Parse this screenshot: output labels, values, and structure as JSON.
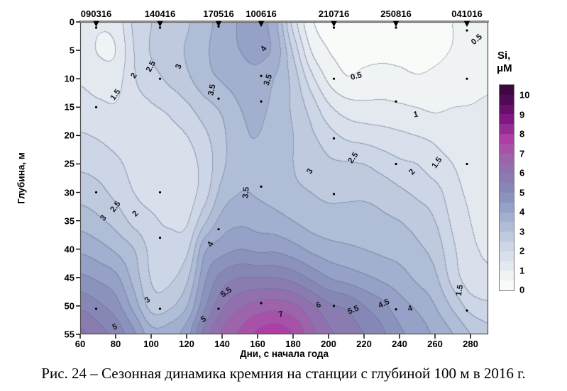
{
  "figure": {
    "caption": "Рис. 24 – Сезонная динамика кремния на станции с глубиной 100 м в 2016 г."
  },
  "chart_data": {
    "type": "heatmap",
    "subtype": "filled-contour-section",
    "title": "",
    "xlabel": "Дни, с начала года",
    "ylabel": "Глубина, м",
    "xlim": [
      60,
      290
    ],
    "ylim": [
      0,
      55
    ],
    "x_ticks": [
      60,
      80,
      100,
      120,
      140,
      160,
      180,
      200,
      220,
      240,
      260,
      280
    ],
    "y_ticks": [
      0,
      5,
      10,
      15,
      20,
      25,
      30,
      35,
      40,
      45,
      50,
      55
    ],
    "grid_on": false,
    "contour_step": 0.5,
    "contour_line_color": "rgba(104,118,152,0.55)",
    "palette_light_to_dark": [
      "#f9fbf8",
      "#eff3f4",
      "#e4e9f0",
      "#d9e0eb",
      "#cdd6e6",
      "#bfcade",
      "#b0bdd6",
      "#a2afcf",
      "#95a1c6",
      "#8b93bd",
      "#8787b5",
      "#8a7bb1",
      "#9170ad",
      "#9d63ab",
      "#a851a8",
      "#ad3ea6",
      "#932d96",
      "#801884",
      "#670f6d",
      "#4f0a55",
      "#3d0742"
    ],
    "colorbar": {
      "title_line1": "Si,",
      "title_line2": "μM",
      "min": 0,
      "max": 10,
      "label_step": 1,
      "ticks": [
        0,
        1,
        2,
        3,
        4,
        5,
        6,
        7,
        8,
        9,
        10
      ],
      "position": "right"
    },
    "top_axis": {
      "dates": [
        "090316",
        "140416",
        "170516",
        "100616",
        "210716",
        "250816",
        "041016"
      ],
      "days": [
        69,
        105,
        138,
        162,
        203,
        238,
        278
      ]
    },
    "samples": [
      {
        "date": "090316",
        "day": 69,
        "depths": [
          1,
          15,
          30,
          50.5
        ]
      },
      {
        "date": "140416",
        "day": 105,
        "depths": [
          1,
          10,
          30,
          38,
          50.5
        ]
      },
      {
        "date": "170516",
        "day": 138,
        "depths": [
          0.8,
          13.5,
          36.5,
          50.5
        ]
      },
      {
        "date": "100616",
        "day": 162,
        "depths": [
          0.5,
          9.5,
          14,
          29,
          49.5
        ]
      },
      {
        "date": "210716",
        "day": 203,
        "depths": [
          1,
          10,
          20.5,
          30.3,
          50
        ]
      },
      {
        "date": "250816",
        "day": 238,
        "depths": [
          1,
          14,
          25,
          50.6
        ]
      },
      {
        "date": "041016",
        "day": 278,
        "depths": [
          1.5,
          10,
          25,
          50.8
        ]
      }
    ],
    "grid": {
      "days": [
        60,
        70,
        80,
        90,
        100,
        110,
        120,
        130,
        140,
        150,
        160,
        170,
        180,
        190,
        200,
        210,
        220,
        230,
        240,
        250,
        260,
        270,
        280,
        290
      ],
      "depths": [
        0,
        5,
        10,
        15,
        20,
        25,
        30,
        35,
        40,
        45,
        50,
        55
      ],
      "si_values": [
        [
          1.25,
          1.05,
          1.2,
          2.1,
          2.5,
          2.7,
          2.95,
          3.3,
          3.75,
          4.05,
          4.2,
          3.6,
          1.8,
          0.6,
          0.35,
          0.3,
          0.3,
          0.3,
          0.3,
          0.3,
          0.38,
          0.5,
          0.6,
          0.72
        ],
        [
          1.3,
          0.97,
          1.02,
          2.0,
          2.55,
          2.8,
          3.05,
          3.4,
          3.8,
          4.0,
          4.15,
          3.8,
          2.4,
          1.0,
          0.5,
          0.4,
          0.4,
          0.4,
          0.4,
          0.38,
          0.42,
          0.52,
          0.63,
          0.78
        ],
        [
          1.45,
          1.3,
          1.3,
          1.95,
          2.3,
          2.6,
          2.9,
          3.3,
          3.55,
          3.75,
          3.8,
          3.45,
          2.8,
          1.7,
          0.9,
          0.55,
          0.62,
          0.68,
          0.62,
          0.55,
          0.6,
          0.7,
          0.82,
          0.92
        ],
        [
          1.7,
          1.6,
          1.55,
          1.8,
          1.95,
          2.1,
          2.4,
          2.8,
          3.1,
          3.5,
          3.6,
          3.35,
          2.9,
          2.3,
          1.6,
          1.25,
          1.15,
          1.15,
          1.08,
          1.0,
          0.92,
          1.0,
          1.02,
          1.06
        ],
        [
          2.05,
          1.95,
          1.8,
          1.75,
          1.8,
          1.85,
          2.0,
          2.4,
          2.9,
          3.4,
          3.5,
          3.3,
          3.0,
          2.6,
          2.2,
          1.9,
          1.8,
          1.7,
          1.6,
          1.5,
          1.4,
          1.3,
          1.2,
          1.15
        ],
        [
          2.4,
          2.3,
          2.1,
          1.85,
          1.75,
          1.7,
          1.8,
          2.2,
          2.9,
          3.4,
          3.45,
          3.25,
          3.0,
          2.85,
          2.6,
          2.55,
          2.5,
          2.3,
          2.1,
          2.0,
          1.7,
          1.5,
          1.3,
          1.25
        ],
        [
          2.8,
          2.65,
          2.35,
          2.0,
          1.8,
          1.7,
          1.75,
          2.3,
          3.2,
          3.5,
          3.45,
          3.3,
          3.1,
          3.0,
          2.9,
          2.9,
          2.9,
          2.8,
          2.6,
          2.4,
          2.2,
          1.7,
          1.4,
          1.3
        ],
        [
          3.3,
          3.1,
          2.8,
          2.35,
          2.1,
          1.9,
          1.95,
          2.9,
          3.7,
          3.9,
          3.8,
          3.7,
          3.5,
          3.3,
          3.2,
          3.2,
          3.2,
          3.1,
          3.0,
          2.8,
          2.5,
          1.9,
          1.5,
          1.35
        ],
        [
          3.9,
          3.7,
          3.4,
          3.0,
          2.35,
          2.3,
          2.4,
          3.9,
          4.3,
          4.5,
          4.4,
          4.4,
          4.2,
          3.9,
          3.7,
          3.6,
          3.5,
          3.4,
          3.3,
          3.1,
          2.8,
          2.1,
          1.6,
          1.45
        ],
        [
          4.6,
          4.4,
          4.1,
          3.3,
          2.45,
          2.4,
          2.9,
          4.4,
          5.2,
          5.5,
          5.5,
          5.5,
          5.3,
          4.9,
          4.5,
          4.3,
          4.1,
          3.9,
          3.7,
          3.4,
          3.1,
          2.3,
          1.7,
          1.6
        ],
        [
          5.4,
          5.1,
          4.7,
          3.8,
          2.8,
          2.9,
          3.5,
          4.9,
          5.9,
          6.4,
          6.7,
          6.8,
          6.6,
          6.1,
          5.6,
          5.4,
          5.0,
          4.65,
          4.2,
          3.9,
          3.5,
          2.9,
          2.3,
          2.1
        ],
        [
          6.1,
          5.7,
          5.3,
          4.6,
          3.7,
          3.8,
          4.3,
          5.7,
          6.6,
          7.1,
          7.6,
          7.8,
          7.5,
          6.7,
          6.1,
          5.8,
          5.5,
          5.1,
          4.6,
          4.3,
          3.9,
          3.5,
          3.0,
          2.7
        ]
      ]
    },
    "contour_labels": [
      {
        "t": "1.5",
        "d": 80,
        "z": 12.8,
        "r": -55
      },
      {
        "t": "2",
        "d": 90.5,
        "z": 9.5,
        "r": -55
      },
      {
        "t": "2.5",
        "d": 100,
        "z": 7.8,
        "r": -62
      },
      {
        "t": "3",
        "d": 115.5,
        "z": 7.8,
        "r": -68
      },
      {
        "t": "3.5",
        "d": 134.5,
        "z": 12,
        "r": -78
      },
      {
        "t": "4",
        "d": 163.5,
        "z": 4.8,
        "r": -55
      },
      {
        "t": "3.5",
        "d": 166,
        "z": 10.2,
        "r": -72
      },
      {
        "t": "3.5",
        "d": 153.5,
        "z": 30,
        "r": -85
      },
      {
        "t": "2",
        "d": 91,
        "z": 33.8,
        "r": -48
      },
      {
        "t": "2.5",
        "d": 80,
        "z": 32.5,
        "r": -52
      },
      {
        "t": "3",
        "d": 73,
        "z": 34.5,
        "r": -52
      },
      {
        "t": "4",
        "d": 133.5,
        "z": 39.2,
        "r": -60
      },
      {
        "t": "3",
        "d": 98,
        "z": 49,
        "r": -35
      },
      {
        "t": "5",
        "d": 79.5,
        "z": 53.7,
        "r": -22
      },
      {
        "t": "5",
        "d": 129.5,
        "z": 52.4,
        "r": -30
      },
      {
        "t": "5.5",
        "d": 142.5,
        "z": 47.7,
        "r": -35
      },
      {
        "t": "7",
        "d": 173,
        "z": 51.5,
        "r": -15
      },
      {
        "t": "6",
        "d": 194.5,
        "z": 49.9,
        "r": -18
      },
      {
        "t": "5.5",
        "d": 214,
        "z": 50.8,
        "r": -22
      },
      {
        "t": "4.5",
        "d": 231,
        "z": 49.6,
        "r": -25
      },
      {
        "t": "4",
        "d": 246,
        "z": 50.5,
        "r": -18
      },
      {
        "t": "1.5",
        "d": 274,
        "z": 47.3,
        "r": -80
      },
      {
        "t": "3",
        "d": 189.5,
        "z": 26.3,
        "r": -60
      },
      {
        "t": "0.5",
        "d": 215.5,
        "z": 9.6,
        "r": -14
      },
      {
        "t": "0.5",
        "d": 283.5,
        "z": 3.1,
        "r": -42
      },
      {
        "t": "1",
        "d": 249,
        "z": 16.3,
        "r": -12
      },
      {
        "t": "1.5",
        "d": 261,
        "z": 24.8,
        "r": -55
      },
      {
        "t": "2",
        "d": 247,
        "z": 26.5,
        "r": -50
      },
      {
        "t": "2.5",
        "d": 214,
        "z": 24,
        "r": -55
      }
    ]
  }
}
